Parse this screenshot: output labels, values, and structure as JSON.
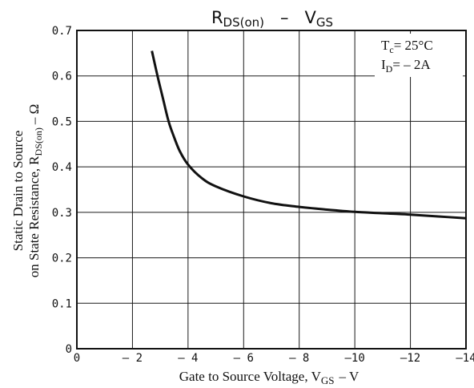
{
  "chart_data": {
    "type": "line",
    "title": "RDS(on) – VGS",
    "title_parts": {
      "r": "R",
      "r_sub": "DS(on)",
      "dash": "–",
      "v": "V",
      "v_sub": "GS"
    },
    "xlabel": "Gate to Source Voltage, VGS – V",
    "xlabel_parts": {
      "main": "Gate to Source Voltage,",
      "v": "V",
      "v_sub": "GS",
      "unit": "– V"
    },
    "ylabel": "Static Drain to Source on State Resistance, RDS(on) – Ω",
    "ylabel_line1": "Static Drain to Source",
    "ylabel_line2_parts": {
      "main": "on State Resistance,",
      "r": "R",
      "r_sub": "DS(on)",
      "unit": "– Ω"
    },
    "xlim": [
      0,
      -14
    ],
    "ylim": [
      0,
      0.7
    ],
    "x_ticks": [
      0,
      -2,
      -4,
      -6,
      -8,
      -10,
      -12,
      -14
    ],
    "x_tick_labels": [
      "0",
      "– 2",
      "– 4",
      "– 6",
      "– 8",
      "–10",
      "–12",
      "–14"
    ],
    "y_ticks": [
      0,
      0.1,
      0.2,
      0.3,
      0.4,
      0.5,
      0.6,
      0.7
    ],
    "y_tick_labels": [
      "0",
      "0.1",
      "0.2",
      "0.3",
      "0.4",
      "0.5",
      "0.6",
      "0.7"
    ],
    "grid": true,
    "annotations": {
      "tc": {
        "t": "T",
        "sub": "c",
        "value": "= 25°C"
      },
      "id": {
        "i": "I",
        "sub": "D",
        "value": "= – 2A"
      }
    },
    "series": [
      {
        "x": [
          -2.7,
          -2.9,
          -3.1,
          -3.3,
          -3.5,
          -3.7,
          -4.0,
          -4.5,
          -5.0,
          -6.0,
          -7.0,
          -8.0,
          -9.0,
          -10.0,
          -11.0,
          -12.0,
          -13.0,
          -14.0
        ],
        "y": [
          0.655,
          0.6,
          0.55,
          0.5,
          0.465,
          0.435,
          0.405,
          0.375,
          0.357,
          0.335,
          0.32,
          0.312,
          0.306,
          0.301,
          0.298,
          0.295,
          0.291,
          0.287
        ]
      }
    ]
  }
}
